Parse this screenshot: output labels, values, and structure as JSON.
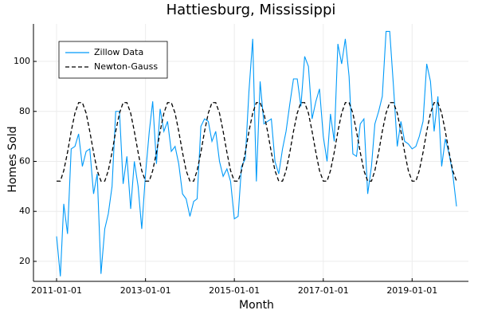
{
  "chart_data": {
    "type": "line",
    "title": "Hattiesburg, Mississippi",
    "x_label": "Month",
    "y_label": "Homes Sold",
    "x": [
      "2011-01-01",
      "2011-02-01",
      "2011-03-01",
      "2011-04-01",
      "2011-05-01",
      "2011-06-01",
      "2011-07-01",
      "2011-08-01",
      "2011-09-01",
      "2011-10-01",
      "2011-11-01",
      "2011-12-01",
      "2012-01-01",
      "2012-02-01",
      "2012-03-01",
      "2012-04-01",
      "2012-05-01",
      "2012-06-01",
      "2012-07-01",
      "2012-08-01",
      "2012-09-01",
      "2012-10-01",
      "2012-11-01",
      "2012-12-01",
      "2013-01-01",
      "2013-02-01",
      "2013-03-01",
      "2013-04-01",
      "2013-05-01",
      "2013-06-01",
      "2013-07-01",
      "2013-08-01",
      "2013-09-01",
      "2013-10-01",
      "2013-11-01",
      "2013-12-01",
      "2014-01-01",
      "2014-02-01",
      "2014-03-01",
      "2014-04-01",
      "2014-05-01",
      "2014-06-01",
      "2014-07-01",
      "2014-08-01",
      "2014-09-01",
      "2014-10-01",
      "2014-11-01",
      "2014-12-01",
      "2015-01-01",
      "2015-02-01",
      "2015-03-01",
      "2015-04-01",
      "2015-05-01",
      "2015-06-01",
      "2015-07-01",
      "2015-08-01",
      "2015-09-01",
      "2015-10-01",
      "2015-11-01",
      "2015-12-01",
      "2016-01-01",
      "2016-02-01",
      "2016-03-01",
      "2016-04-01",
      "2016-05-01",
      "2016-06-01",
      "2016-07-01",
      "2016-08-01",
      "2016-09-01",
      "2016-10-01",
      "2016-11-01",
      "2016-12-01",
      "2017-01-01",
      "2017-02-01",
      "2017-03-01",
      "2017-04-01",
      "2017-05-01",
      "2017-06-01",
      "2017-07-01",
      "2017-08-01",
      "2017-09-01",
      "2017-10-01",
      "2017-11-01",
      "2017-12-01",
      "2018-01-01",
      "2018-02-01",
      "2018-03-01",
      "2018-04-01",
      "2018-05-01",
      "2018-06-01",
      "2018-07-01",
      "2018-08-01",
      "2018-09-01",
      "2018-10-01",
      "2018-11-01",
      "2018-12-01",
      "2019-01-01",
      "2019-02-01",
      "2019-03-01",
      "2019-04-01",
      "2019-05-01",
      "2019-06-01",
      "2019-07-01",
      "2019-08-01",
      "2019-09-01",
      "2019-10-01",
      "2019-11-01",
      "2019-12-01",
      "2020-01-01"
    ],
    "series": [
      {
        "name": "Zillow Data",
        "color": "#009af9",
        "dash": false,
        "values": [
          30,
          14,
          43,
          31,
          65,
          66,
          71,
          58,
          64,
          65,
          47,
          55,
          15,
          33,
          39,
          50,
          80,
          80,
          51,
          62,
          41,
          60,
          50,
          33,
          55,
          72,
          84,
          59,
          81,
          72,
          76,
          64,
          66,
          59,
          47,
          45,
          38,
          44,
          45,
          74,
          77,
          76,
          68,
          72,
          60,
          54,
          57,
          52,
          37,
          38,
          58,
          61,
          88,
          109,
          52,
          92,
          75,
          76,
          77,
          60,
          55,
          65,
          72,
          83,
          93,
          93,
          82,
          102,
          98,
          77,
          84,
          89,
          70,
          60,
          79,
          68,
          107,
          99,
          109,
          94,
          63,
          62,
          75,
          77,
          47,
          58,
          75,
          80,
          86,
          112,
          112,
          90,
          66,
          76,
          68,
          67,
          65,
          66,
          70,
          76,
          99,
          92,
          72,
          86,
          58,
          69,
          63,
          55,
          42
        ]
      },
      {
        "name": "Newton-Gauss",
        "color": "#000000",
        "dash": true,
        "values": [
          52.1,
          52.1,
          56.3,
          63.6,
          72.0,
          79.3,
          83.5,
          83.5,
          79.3,
          72.0,
          63.6,
          56.3,
          52.1,
          52.1,
          56.3,
          63.6,
          72.0,
          79.3,
          83.5,
          83.5,
          79.3,
          72.0,
          63.6,
          56.3,
          52.1,
          52.1,
          56.3,
          63.6,
          72.0,
          79.3,
          83.5,
          83.5,
          79.3,
          72.0,
          63.6,
          56.3,
          52.1,
          52.1,
          56.3,
          63.6,
          72.0,
          79.3,
          83.5,
          83.5,
          79.3,
          72.0,
          63.6,
          56.3,
          52.1,
          52.1,
          56.3,
          63.6,
          72.0,
          79.3,
          83.5,
          83.5,
          79.3,
          72.0,
          63.6,
          56.3,
          52.1,
          52.1,
          56.3,
          63.6,
          72.0,
          79.3,
          83.5,
          83.5,
          79.3,
          72.0,
          63.6,
          56.3,
          52.1,
          52.1,
          56.3,
          63.6,
          72.0,
          79.3,
          83.5,
          83.5,
          79.3,
          72.0,
          63.6,
          56.3,
          52.1,
          52.1,
          56.3,
          63.6,
          72.0,
          79.3,
          83.5,
          83.5,
          79.3,
          72.0,
          63.6,
          56.3,
          52.1,
          52.1,
          56.3,
          63.6,
          72.0,
          79.3,
          83.5,
          83.5,
          79.3,
          72.0,
          63.6,
          56.3,
          52.1
        ]
      }
    ],
    "xlim": [
      "2010-06-25",
      "2020-04-08"
    ],
    "xticks": [
      "2011-01-01",
      "2013-01-01",
      "2015-01-01",
      "2017-01-01",
      "2019-01-01"
    ],
    "ylim": [
      12,
      115
    ],
    "yticks": [
      20,
      40,
      60,
      80,
      100
    ],
    "grid": true,
    "legend": "top-left"
  }
}
